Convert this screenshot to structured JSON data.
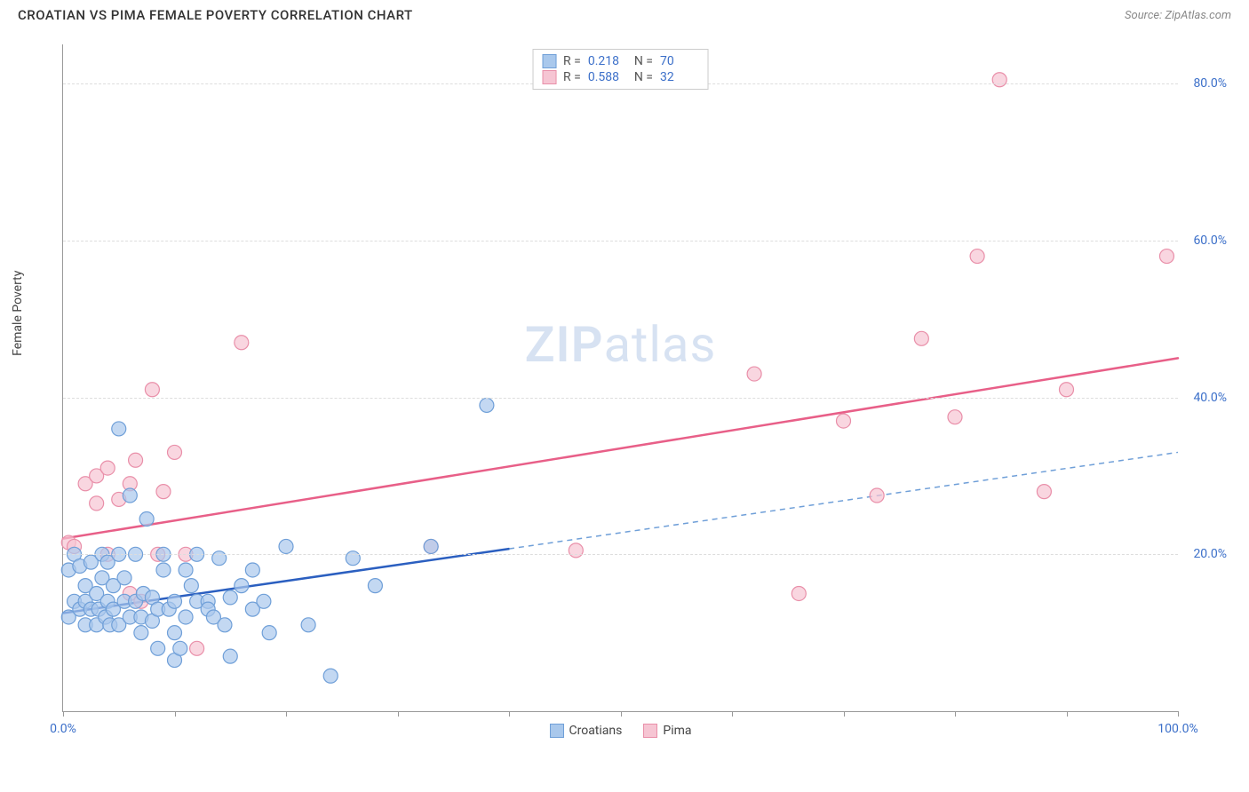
{
  "header": {
    "title": "CROATIAN VS PIMA FEMALE POVERTY CORRELATION CHART",
    "source_prefix": "Source: ",
    "source_name": "ZipAtlas.com"
  },
  "watermark": {
    "zip": "ZIP",
    "atlas": "atlas"
  },
  "chart": {
    "type": "scatter",
    "ylabel": "Female Poverty",
    "xlim": [
      0,
      100
    ],
    "ylim": [
      0,
      85
    ],
    "x_ticks": [
      0,
      10,
      20,
      30,
      40,
      50,
      60,
      70,
      80,
      90,
      100
    ],
    "x_tick_labels": {
      "0": "0.0%",
      "100": "100.0%"
    },
    "y_ticks": [
      20,
      40,
      60,
      80
    ],
    "y_tick_labels": {
      "20": "20.0%",
      "40": "40.0%",
      "60": "60.0%",
      "80": "80.0%"
    },
    "grid_color": "#dddddd",
    "axis_color": "#999999",
    "background_color": "#ffffff",
    "tick_label_color": "#3b6fc9",
    "axis_label_color": "#444444",
    "series": {
      "croatians": {
        "label": "Croatians",
        "marker_fill": "#a9c8ec",
        "marker_stroke": "#6f9fd8",
        "marker_opacity": 0.7,
        "marker_radius": 8,
        "trend_color": "#2b5fc0",
        "trend_width": 2.5,
        "trend_dash_color": "#6f9fd8",
        "trend_solid_xmax": 40,
        "trend": {
          "y_at_x0": 12.5,
          "y_at_x100": 33
        },
        "R": "0.218",
        "N": "70",
        "points": [
          [
            0.5,
            18
          ],
          [
            0.5,
            12
          ],
          [
            1,
            14
          ],
          [
            1,
            20
          ],
          [
            1.5,
            13
          ],
          [
            1.5,
            18.5
          ],
          [
            2,
            11
          ],
          [
            2,
            14
          ],
          [
            2,
            16
          ],
          [
            2.5,
            19
          ],
          [
            2.5,
            13
          ],
          [
            3,
            15
          ],
          [
            3,
            11
          ],
          [
            3.2,
            13
          ],
          [
            3.5,
            20
          ],
          [
            3.5,
            17
          ],
          [
            3.8,
            12
          ],
          [
            4,
            19
          ],
          [
            4,
            14
          ],
          [
            4.2,
            11
          ],
          [
            4.5,
            16
          ],
          [
            4.5,
            13
          ],
          [
            5,
            36
          ],
          [
            5,
            20
          ],
          [
            5,
            11
          ],
          [
            5.5,
            14
          ],
          [
            5.5,
            17
          ],
          [
            6,
            12
          ],
          [
            6,
            27.5
          ],
          [
            6.5,
            20
          ],
          [
            6.5,
            14
          ],
          [
            7,
            10
          ],
          [
            7,
            12
          ],
          [
            7.2,
            15
          ],
          [
            7.5,
            24.5
          ],
          [
            8,
            14.5
          ],
          [
            8,
            11.5
          ],
          [
            8.5,
            8
          ],
          [
            8.5,
            13
          ],
          [
            9,
            18
          ],
          [
            9,
            20
          ],
          [
            9.5,
            13
          ],
          [
            10,
            6.5
          ],
          [
            10,
            10
          ],
          [
            10,
            14
          ],
          [
            10.5,
            8
          ],
          [
            11,
            18
          ],
          [
            11,
            12
          ],
          [
            11.5,
            16
          ],
          [
            12,
            20
          ],
          [
            12,
            14
          ],
          [
            13,
            14
          ],
          [
            13,
            13
          ],
          [
            13.5,
            12
          ],
          [
            14,
            19.5
          ],
          [
            14.5,
            11
          ],
          [
            15,
            14.5
          ],
          [
            15,
            7
          ],
          [
            16,
            16
          ],
          [
            17,
            18
          ],
          [
            17,
            13
          ],
          [
            18,
            14
          ],
          [
            18.5,
            10
          ],
          [
            20,
            21
          ],
          [
            22,
            11
          ],
          [
            24,
            4.5
          ],
          [
            26,
            19.5
          ],
          [
            28,
            16
          ],
          [
            33,
            21
          ],
          [
            38,
            39
          ]
        ]
      },
      "pima": {
        "label": "Pima",
        "marker_fill": "#f6c5d3",
        "marker_stroke": "#e98fa9",
        "marker_opacity": 0.7,
        "marker_radius": 8,
        "trend_color": "#e85f88",
        "trend_width": 2.5,
        "trend_solid_xmax": 100,
        "trend": {
          "y_at_x0": 22,
          "y_at_x100": 45
        },
        "R": "0.588",
        "N": "32",
        "points": [
          [
            0.5,
            21.5
          ],
          [
            1,
            21
          ],
          [
            2,
            29
          ],
          [
            3,
            30
          ],
          [
            3,
            26.5
          ],
          [
            4,
            20
          ],
          [
            4,
            31
          ],
          [
            5,
            27
          ],
          [
            6,
            29
          ],
          [
            6,
            15
          ],
          [
            6.5,
            32
          ],
          [
            7,
            14
          ],
          [
            8,
            41
          ],
          [
            8.5,
            20
          ],
          [
            9,
            28
          ],
          [
            10,
            33
          ],
          [
            11,
            20
          ],
          [
            12,
            8
          ],
          [
            16,
            47
          ],
          [
            33,
            21
          ],
          [
            46,
            20.5
          ],
          [
            62,
            43
          ],
          [
            66,
            15
          ],
          [
            70,
            37
          ],
          [
            73,
            27.5
          ],
          [
            77,
            47.5
          ],
          [
            80,
            37.5
          ],
          [
            82,
            58
          ],
          [
            84,
            80.5
          ],
          [
            88,
            28
          ],
          [
            90,
            41
          ],
          [
            99,
            58
          ]
        ]
      }
    },
    "legend_stats": {
      "R_label": "R =",
      "N_label": "N ="
    },
    "bottom_legend": {
      "items": [
        "croatians",
        "pima"
      ]
    }
  }
}
